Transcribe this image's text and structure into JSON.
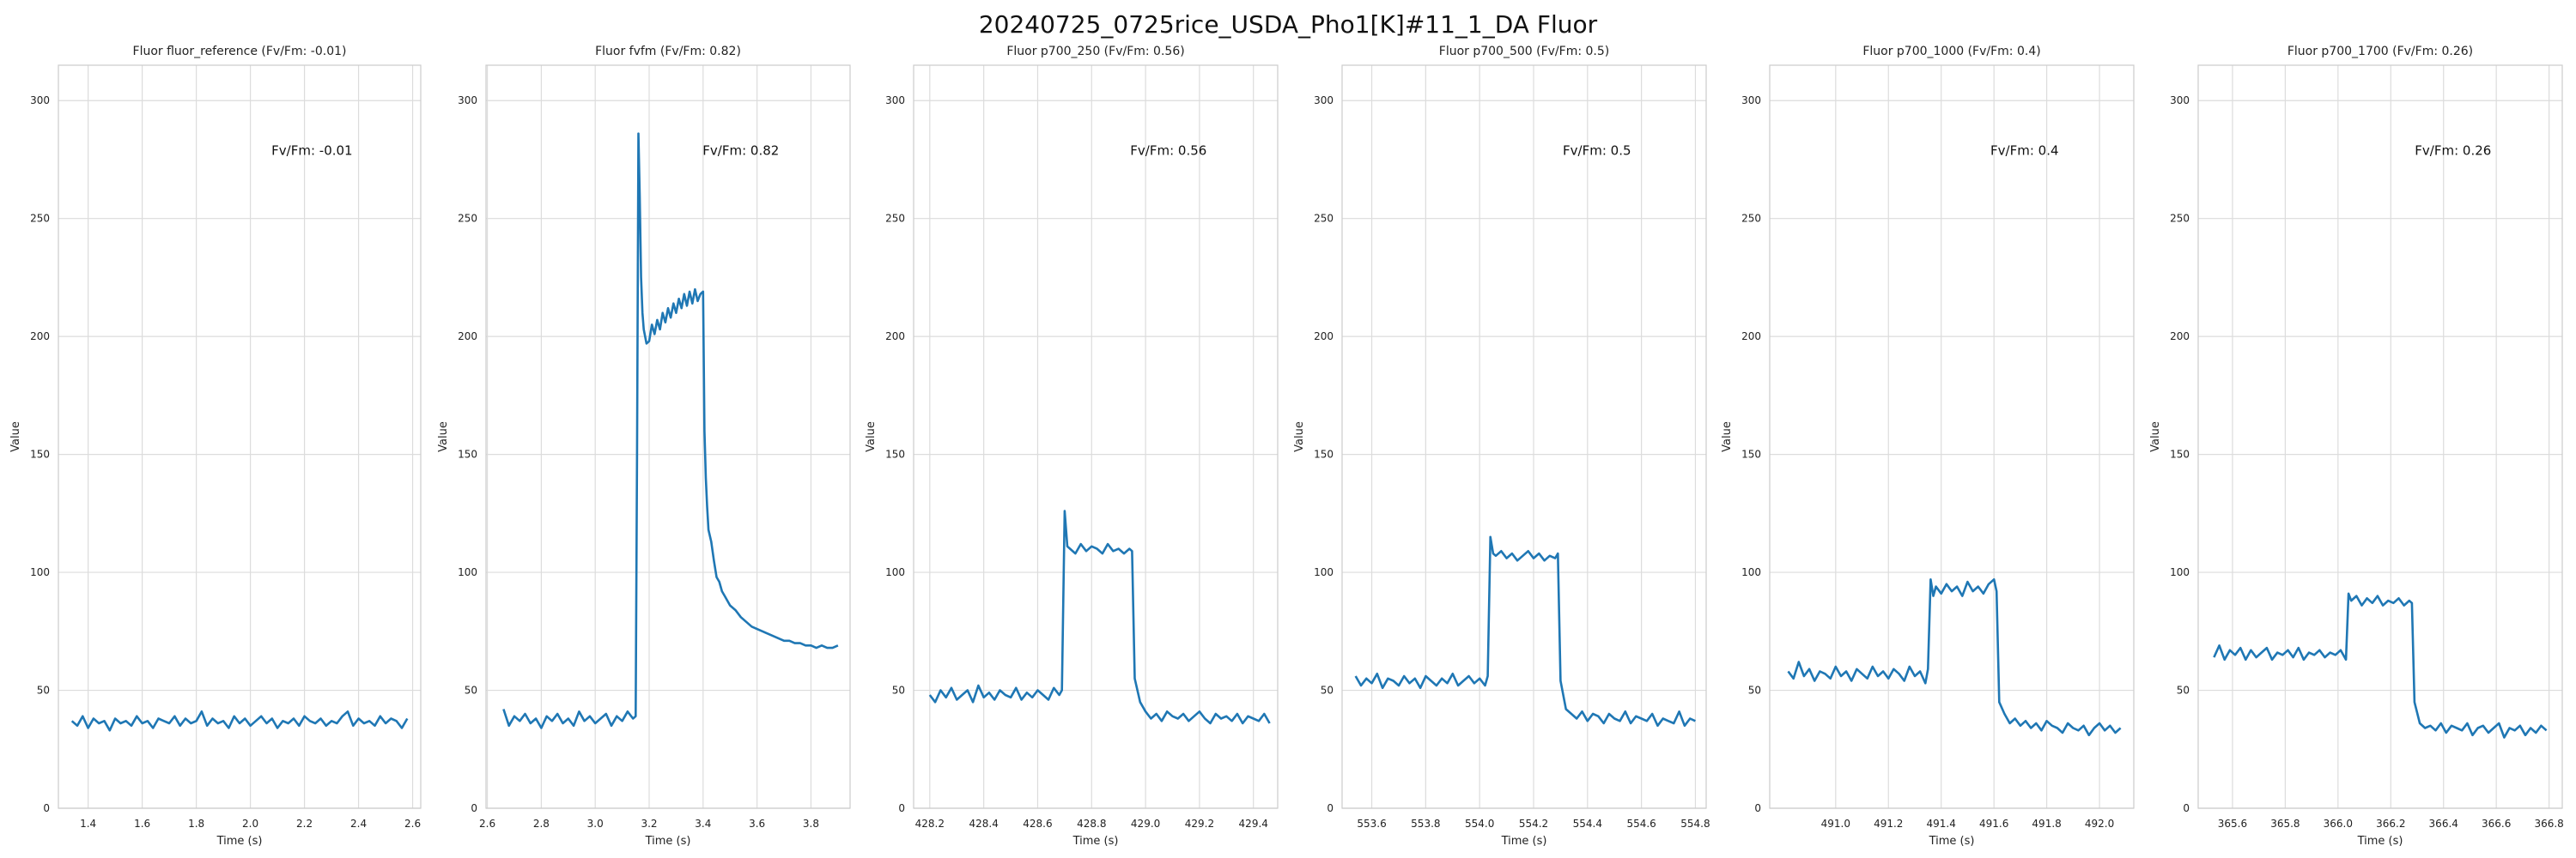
{
  "figure": {
    "title": "20240725_0725rice_USDA_Pho1[K]#11_1_DA Fluor"
  },
  "colors": {
    "line": "#1f77b4",
    "grid": "#dcdcdc",
    "frame": "#cccccc",
    "text": "#222222"
  },
  "chart_data": [
    {
      "type": "line",
      "title": "Fluor fluor_reference (Fv/Fm: -0.01)",
      "annotation": "Fv/Fm: -0.01",
      "xlabel": "Time (s)",
      "ylabel": "Value",
      "xlim": [
        1.29,
        2.63
      ],
      "ylim": [
        0,
        315
      ],
      "xticks": [
        "1.4",
        "1.6",
        "1.8",
        "2.0",
        "2.2",
        "2.4",
        "2.6"
      ],
      "yticks": [
        "0",
        "50",
        "100",
        "150",
        "200",
        "250",
        "300"
      ],
      "grid": true,
      "series": [
        {
          "x": [
            1.34,
            1.36,
            1.38,
            1.4,
            1.42,
            1.44,
            1.46,
            1.48,
            1.5,
            1.52,
            1.54,
            1.56,
            1.58,
            1.6,
            1.62,
            1.64,
            1.66,
            1.68,
            1.7,
            1.72,
            1.74,
            1.76,
            1.78,
            1.8,
            1.82,
            1.84,
            1.86,
            1.88,
            1.9,
            1.92,
            1.94,
            1.96,
            1.98,
            2.0,
            2.02,
            2.04,
            2.06,
            2.08,
            2.1,
            2.12,
            2.14,
            2.16,
            2.18,
            2.2,
            2.22,
            2.24,
            2.26,
            2.28,
            2.3,
            2.32,
            2.34,
            2.36,
            2.38,
            2.4,
            2.42,
            2.44,
            2.46,
            2.48,
            2.5,
            2.52,
            2.54,
            2.56,
            2.58
          ],
          "y": [
            37,
            35,
            39,
            34,
            38,
            36,
            37,
            33,
            38,
            36,
            37,
            35,
            39,
            36,
            37,
            34,
            38,
            37,
            36,
            39,
            35,
            38,
            36,
            37,
            41,
            35,
            38,
            36,
            37,
            34,
            39,
            36,
            38,
            35,
            37,
            39,
            36,
            38,
            34,
            37,
            36,
            38,
            35,
            39,
            37,
            36,
            38,
            35,
            37,
            36,
            39,
            41,
            35,
            38,
            36,
            37,
            35,
            39,
            36,
            38,
            37,
            34,
            38
          ]
        }
      ]
    },
    {
      "type": "line",
      "title": "Fluor fvfm (Fv/Fm: 0.82)",
      "annotation": "Fv/Fm: 0.82",
      "xlabel": "Time (s)",
      "ylabel": "Value",
      "xlim": [
        2.595,
        3.945
      ],
      "ylim": [
        0,
        315
      ],
      "xticks": [
        "2.6",
        "2.8",
        "3.0",
        "3.2",
        "3.4",
        "3.6",
        "3.8"
      ],
      "yticks": [
        "0",
        "50",
        "100",
        "150",
        "200",
        "250",
        "300"
      ],
      "grid": true,
      "series": [
        {
          "x": [
            2.66,
            2.68,
            2.7,
            2.72,
            2.74,
            2.76,
            2.78,
            2.8,
            2.82,
            2.84,
            2.86,
            2.88,
            2.9,
            2.92,
            2.94,
            2.96,
            2.98,
            3.0,
            3.02,
            3.04,
            3.06,
            3.08,
            3.1,
            3.12,
            3.14,
            3.15,
            3.155,
            3.16,
            3.165,
            3.17,
            3.175,
            3.18,
            3.19,
            3.2,
            3.21,
            3.22,
            3.23,
            3.24,
            3.25,
            3.26,
            3.27,
            3.28,
            3.29,
            3.3,
            3.31,
            3.32,
            3.33,
            3.34,
            3.35,
            3.36,
            3.37,
            3.38,
            3.39,
            3.4,
            3.405,
            3.41,
            3.415,
            3.42,
            3.43,
            3.44,
            3.45,
            3.46,
            3.47,
            3.48,
            3.49,
            3.5,
            3.52,
            3.54,
            3.56,
            3.58,
            3.6,
            3.62,
            3.64,
            3.66,
            3.68,
            3.7,
            3.72,
            3.74,
            3.76,
            3.78,
            3.8,
            3.82,
            3.84,
            3.86,
            3.88,
            3.9
          ],
          "y": [
            42,
            35,
            39,
            37,
            40,
            36,
            38,
            34,
            39,
            37,
            40,
            36,
            38,
            35,
            41,
            37,
            39,
            36,
            38,
            40,
            35,
            39,
            37,
            41,
            38,
            39,
            150,
            286,
            260,
            225,
            210,
            203,
            197,
            198,
            205,
            201,
            207,
            203,
            210,
            206,
            212,
            208,
            214,
            210,
            216,
            212,
            218,
            213,
            219,
            214,
            220,
            215,
            218,
            219,
            160,
            140,
            128,
            118,
            113,
            105,
            98,
            96,
            92,
            90,
            88,
            86,
            84,
            81,
            79,
            77,
            76,
            75,
            74,
            73,
            72,
            71,
            71,
            70,
            70,
            69,
            69,
            68,
            69,
            68,
            68,
            69
          ]
        }
      ]
    },
    {
      "type": "line",
      "title": "Fluor p700_250 (Fv/Fm: 0.56)",
      "annotation": "Fv/Fm: 0.56",
      "xlabel": "Time (s)",
      "ylabel": "Value",
      "xlim": [
        428.14,
        429.49
      ],
      "ylim": [
        0,
        315
      ],
      "xticks": [
        "428.2",
        "428.4",
        "428.6",
        "428.8",
        "429.0",
        "429.2",
        "429.4"
      ],
      "yticks": [
        "0",
        "50",
        "100",
        "150",
        "200",
        "250",
        "300"
      ],
      "grid": true,
      "series": [
        {
          "x": [
            428.2,
            428.22,
            428.24,
            428.26,
            428.28,
            428.3,
            428.32,
            428.34,
            428.36,
            428.38,
            428.4,
            428.42,
            428.44,
            428.46,
            428.48,
            428.5,
            428.52,
            428.54,
            428.56,
            428.58,
            428.6,
            428.62,
            428.64,
            428.66,
            428.68,
            428.69,
            428.7,
            428.71,
            428.72,
            428.74,
            428.76,
            428.78,
            428.8,
            428.82,
            428.84,
            428.86,
            428.88,
            428.9,
            428.92,
            428.94,
            428.95,
            428.96,
            428.98,
            429.0,
            429.02,
            429.04,
            429.06,
            429.08,
            429.1,
            429.12,
            429.14,
            429.16,
            429.18,
            429.2,
            429.22,
            429.24,
            429.26,
            429.28,
            429.3,
            429.32,
            429.34,
            429.36,
            429.38,
            429.4,
            429.42,
            429.44,
            429.46
          ],
          "y": [
            48,
            45,
            50,
            47,
            51,
            46,
            48,
            50,
            45,
            52,
            47,
            49,
            46,
            50,
            48,
            47,
            51,
            46,
            49,
            47,
            50,
            48,
            46,
            51,
            48,
            50,
            126,
            111,
            110,
            108,
            112,
            109,
            111,
            110,
            108,
            112,
            109,
            110,
            108,
            110,
            109,
            55,
            45,
            41,
            38,
            40,
            37,
            41,
            39,
            38,
            40,
            37,
            39,
            41,
            38,
            36,
            40,
            38,
            39,
            37,
            40,
            36,
            39,
            38,
            37,
            40,
            36
          ]
        }
      ]
    },
    {
      "type": "line",
      "title": "Fluor p700_500 (Fv/Fm: 0.5)",
      "annotation": "Fv/Fm: 0.5",
      "xlabel": "Time (s)",
      "ylabel": "Value",
      "xlim": [
        553.49,
        554.84
      ],
      "ylim": [
        0,
        315
      ],
      "xticks": [
        "553.6",
        "553.8",
        "554.0",
        "554.2",
        "554.4",
        "554.6",
        "554.8"
      ],
      "yticks": [
        "0",
        "50",
        "100",
        "150",
        "200",
        "250",
        "300"
      ],
      "grid": true,
      "series": [
        {
          "x": [
            553.54,
            553.56,
            553.58,
            553.6,
            553.62,
            553.64,
            553.66,
            553.68,
            553.7,
            553.72,
            553.74,
            553.76,
            553.78,
            553.8,
            553.82,
            553.84,
            553.86,
            553.88,
            553.9,
            553.92,
            553.94,
            553.96,
            553.98,
            554.0,
            554.02,
            554.03,
            554.04,
            554.05,
            554.06,
            554.08,
            554.1,
            554.12,
            554.14,
            554.16,
            554.18,
            554.2,
            554.22,
            554.24,
            554.26,
            554.28,
            554.29,
            554.3,
            554.32,
            554.34,
            554.36,
            554.38,
            554.4,
            554.42,
            554.44,
            554.46,
            554.48,
            554.5,
            554.52,
            554.54,
            554.56,
            554.58,
            554.6,
            554.62,
            554.64,
            554.66,
            554.68,
            554.7,
            554.72,
            554.74,
            554.76,
            554.78,
            554.8
          ],
          "y": [
            56,
            52,
            55,
            53,
            57,
            51,
            55,
            54,
            52,
            56,
            53,
            55,
            51,
            56,
            54,
            52,
            55,
            53,
            57,
            52,
            54,
            56,
            53,
            55,
            52,
            56,
            115,
            108,
            107,
            109,
            106,
            108,
            105,
            107,
            109,
            106,
            108,
            105,
            107,
            106,
            108,
            54,
            42,
            40,
            38,
            41,
            37,
            40,
            39,
            36,
            40,
            38,
            37,
            41,
            36,
            39,
            38,
            37,
            40,
            35,
            38,
            37,
            36,
            41,
            35,
            38,
            37
          ]
        }
      ]
    },
    {
      "type": "line",
      "title": "Fluor p700_1000 (Fv/Fm: 0.4)",
      "annotation": "Fv/Fm: 0.4",
      "xlabel": "Time (s)",
      "ylabel": "Value",
      "xlim": [
        490.75,
        492.13
      ],
      "ylim": [
        0,
        315
      ],
      "xticks": [
        "491.0",
        "491.2",
        "491.4",
        "491.6",
        "491.8",
        "492.0"
      ],
      "yticks": [
        "0",
        "50",
        "100",
        "150",
        "200",
        "250",
        "300"
      ],
      "grid": true,
      "series": [
        {
          "x": [
            490.82,
            490.84,
            490.86,
            490.88,
            490.9,
            490.92,
            490.94,
            490.96,
            490.98,
            491.0,
            491.02,
            491.04,
            491.06,
            491.08,
            491.1,
            491.12,
            491.14,
            491.16,
            491.18,
            491.2,
            491.22,
            491.24,
            491.26,
            491.28,
            491.3,
            491.32,
            491.34,
            491.35,
            491.36,
            491.37,
            491.38,
            491.4,
            491.42,
            491.44,
            491.46,
            491.48,
            491.5,
            491.52,
            491.54,
            491.56,
            491.58,
            491.6,
            491.61,
            491.62,
            491.64,
            491.66,
            491.68,
            491.7,
            491.72,
            491.74,
            491.76,
            491.78,
            491.8,
            491.82,
            491.84,
            491.86,
            491.88,
            491.9,
            491.92,
            491.94,
            491.96,
            491.98,
            492.0,
            492.02,
            492.04,
            492.06,
            492.08
          ],
          "y": [
            58,
            55,
            62,
            56,
            59,
            54,
            58,
            57,
            55,
            60,
            56,
            58,
            54,
            59,
            57,
            55,
            60,
            56,
            58,
            55,
            59,
            57,
            54,
            60,
            56,
            58,
            53,
            59,
            97,
            90,
            94,
            91,
            95,
            92,
            94,
            90,
            96,
            92,
            94,
            91,
            95,
            97,
            92,
            45,
            40,
            36,
            38,
            35,
            37,
            34,
            36,
            33,
            37,
            35,
            34,
            32,
            36,
            34,
            33,
            35,
            31,
            34,
            36,
            33,
            35,
            32,
            34
          ]
        }
      ]
    },
    {
      "type": "line",
      "title": "Fluor p700_1700 (Fv/Fm: 0.26)",
      "annotation": "Fv/Fm: 0.26",
      "xlabel": "Time (s)",
      "ylabel": "Value",
      "xlim": [
        365.47,
        366.85
      ],
      "ylim": [
        0,
        315
      ],
      "xticks": [
        "365.6",
        "365.8",
        "366.0",
        "366.2",
        "366.4",
        "366.6",
        "366.8"
      ],
      "yticks": [
        "0",
        "50",
        "100",
        "150",
        "200",
        "250",
        "300"
      ],
      "grid": true,
      "series": [
        {
          "x": [
            365.53,
            365.55,
            365.57,
            365.59,
            365.61,
            365.63,
            365.65,
            365.67,
            365.69,
            365.71,
            365.73,
            365.75,
            365.77,
            365.79,
            365.81,
            365.83,
            365.85,
            365.87,
            365.89,
            365.91,
            365.93,
            365.95,
            365.97,
            365.99,
            366.01,
            366.03,
            366.04,
            366.05,
            366.07,
            366.09,
            366.11,
            366.13,
            366.15,
            366.17,
            366.19,
            366.21,
            366.23,
            366.25,
            366.27,
            366.28,
            366.29,
            366.31,
            366.33,
            366.35,
            366.37,
            366.39,
            366.41,
            366.43,
            366.45,
            366.47,
            366.49,
            366.51,
            366.53,
            366.55,
            366.57,
            366.59,
            366.61,
            366.63,
            366.65,
            366.67,
            366.69,
            366.71,
            366.73,
            366.75,
            366.77,
            366.79
          ],
          "y": [
            64,
            69,
            63,
            67,
            65,
            68,
            63,
            67,
            64,
            66,
            68,
            63,
            66,
            65,
            67,
            64,
            68,
            63,
            66,
            65,
            67,
            64,
            66,
            65,
            67,
            63,
            91,
            88,
            90,
            86,
            89,
            87,
            90,
            86,
            88,
            87,
            89,
            86,
            88,
            87,
            45,
            36,
            34,
            35,
            33,
            36,
            32,
            35,
            34,
            33,
            36,
            31,
            34,
            35,
            32,
            34,
            36,
            30,
            34,
            33,
            35,
            31,
            34,
            32,
            35,
            33
          ]
        }
      ]
    }
  ]
}
